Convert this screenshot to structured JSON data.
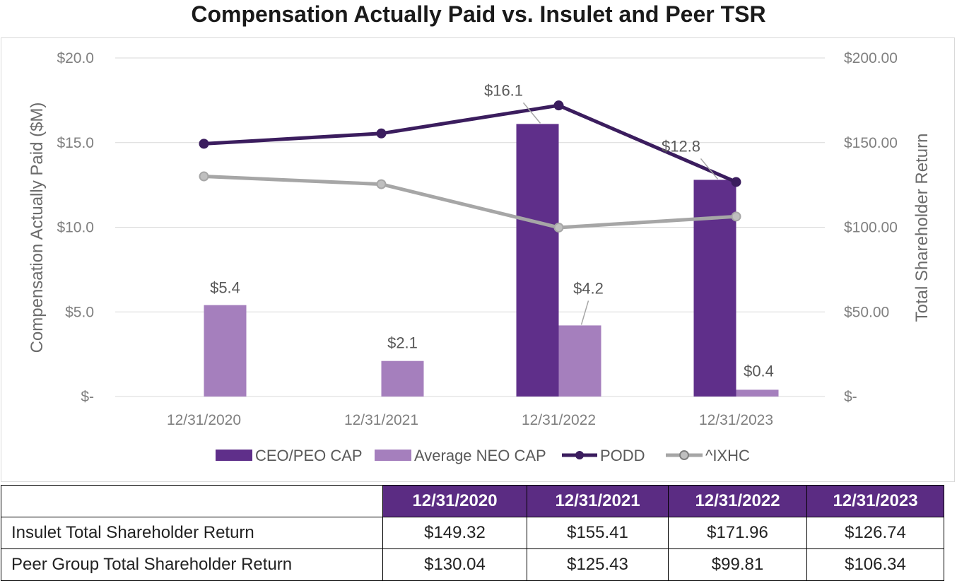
{
  "title": "Compensation Actually Paid vs. Insulet and Peer TSR",
  "chart_data": {
    "type": "bar",
    "categories": [
      "12/31/2020",
      "12/31/2021",
      "12/31/2022",
      "12/31/2023"
    ],
    "y_left": {
      "label": "Compensation Actually Paid ($M)",
      "ylim": [
        0,
        20
      ],
      "ticks": [
        0,
        5,
        10,
        15,
        20
      ],
      "tick_labels": [
        "$-",
        "$5.0",
        "$10.0",
        "$15.0",
        "$20.0"
      ]
    },
    "y_right": {
      "label": "Total Shareholder Return",
      "ylim": [
        0,
        200
      ],
      "ticks": [
        0,
        50,
        100,
        150,
        200
      ],
      "tick_labels": [
        "$-",
        "$50.00",
        "$100.00",
        "$150.00",
        "$200.00"
      ]
    },
    "series": [
      {
        "name": "CEO/PEO CAP",
        "kind": "bar",
        "axis": "left",
        "color": "#5f2f8a",
        "values": [
          null,
          null,
          16.1,
          12.8
        ],
        "labels": [
          null,
          null,
          "$16.1",
          "$12.8"
        ]
      },
      {
        "name": "Average NEO CAP",
        "kind": "bar",
        "axis": "left",
        "color": "#a57fbd",
        "values": [
          5.4,
          2.1,
          4.2,
          0.4
        ],
        "labels": [
          "$5.4",
          "$2.1",
          "$4.2",
          "$0.4"
        ]
      },
      {
        "name": "PODD",
        "kind": "line",
        "axis": "right",
        "color": "#3b1d5e",
        "values": [
          149.32,
          155.41,
          171.96,
          126.74
        ]
      },
      {
        "name": "^IXHC",
        "kind": "line",
        "axis": "right",
        "color": "#a6a6a6",
        "values": [
          130.04,
          125.43,
          99.81,
          106.34
        ]
      }
    ],
    "grid": true,
    "legend": "bottom"
  },
  "table": {
    "headers": [
      "12/31/2020",
      "12/31/2021",
      "12/31/2022",
      "12/31/2023"
    ],
    "rows": [
      {
        "label": "Insulet Total Shareholder Return",
        "values": [
          "$149.32",
          "$155.41",
          "$171.96",
          "$126.74"
        ]
      },
      {
        "label": "Peer Group Total Shareholder Return",
        "values": [
          "$130.04",
          "$125.43",
          "$99.81",
          "$106.34"
        ]
      }
    ]
  }
}
